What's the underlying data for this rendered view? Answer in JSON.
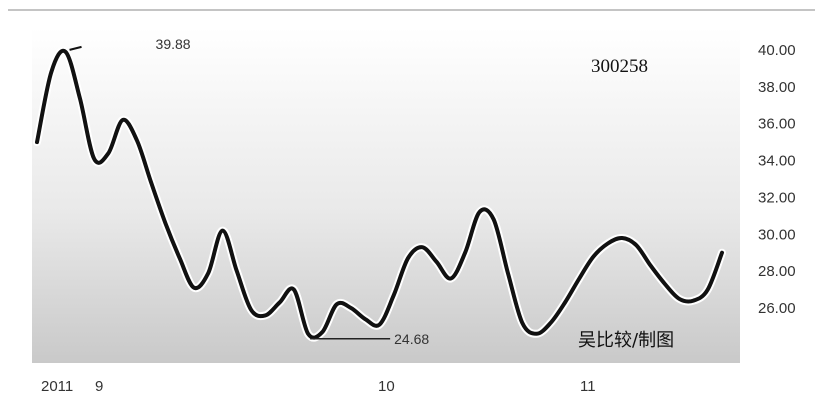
{
  "chart_data": {
    "type": "line",
    "stock_code": "300258",
    "credit": "吴比较/制图",
    "y_ticks": [
      "40.00",
      "38.00",
      "36.00",
      "34.00",
      "32.00",
      "30.00",
      "28.00",
      "26.00"
    ],
    "y_tick_values": [
      40,
      38,
      36,
      34,
      32,
      30,
      28,
      26
    ],
    "ylim": [
      23.5,
      41.2
    ],
    "x_labels": [
      "2011",
      "9",
      "10",
      "11"
    ],
    "annotations": [
      {
        "text": "39.88",
        "kind": "high",
        "value": 39.88
      },
      {
        "text": "24.68",
        "kind": "low",
        "value": 24.68
      }
    ],
    "series": [
      {
        "values": [
          35.0,
          38.8,
          39.9,
          37.4,
          34.1,
          34.4,
          36.2,
          35.1,
          32.8,
          30.6,
          28.7,
          27.1,
          27.9,
          30.2,
          28.0,
          25.9,
          25.6,
          26.3,
          27.0,
          24.6,
          24.7,
          26.2,
          26.0,
          25.4,
          25.1,
          26.7,
          28.7,
          29.3,
          28.5,
          27.6,
          29.0,
          31.2,
          30.8,
          27.9,
          25.2,
          24.6,
          25.2,
          26.3,
          27.6,
          28.8,
          29.5,
          29.8,
          29.4,
          28.3,
          27.3,
          26.5,
          26.4,
          27.0,
          29.0
        ]
      }
    ],
    "grid": false,
    "legend": "none"
  }
}
